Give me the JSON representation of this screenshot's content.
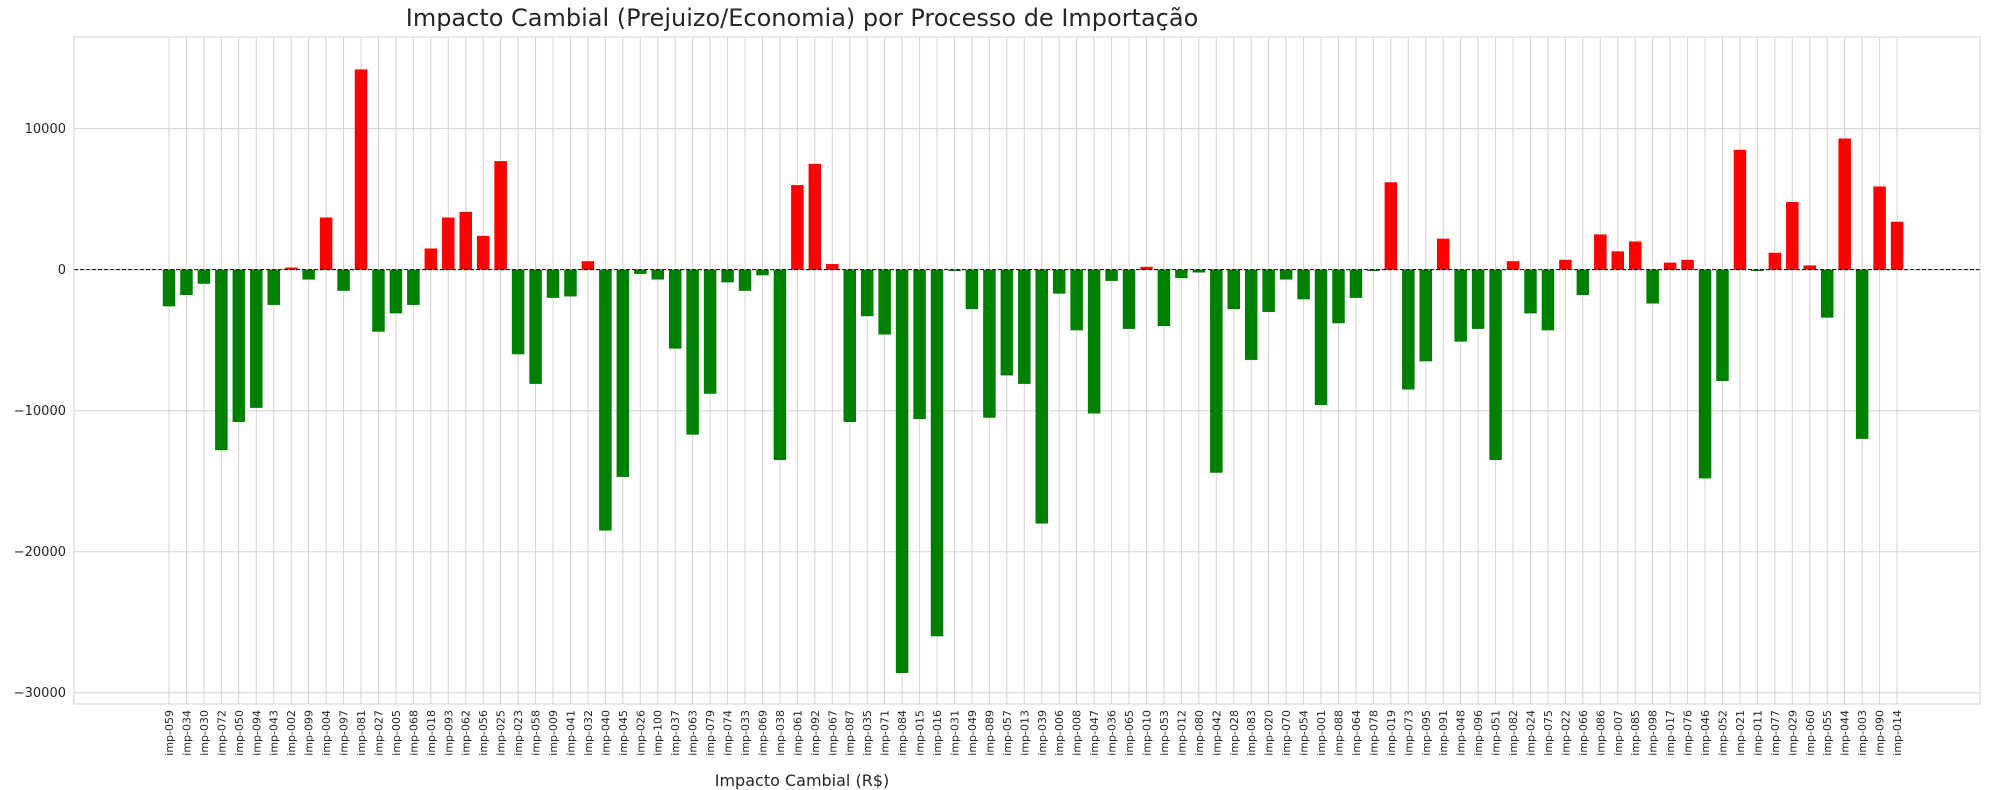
{
  "chart_data": {
    "type": "bar",
    "title": "Impacto Cambial (Prejuizo/Economia) por Processo de Importação",
    "xlabel": "Impacto Cambial (R$)",
    "ylabel": "",
    "ylim": [
      -30800,
      16500
    ],
    "yticks": [
      10000,
      0,
      -10000,
      -20000,
      -30000
    ],
    "ytick_labels": [
      "10000",
      "0",
      "−10000",
      "−20000",
      "−30000"
    ],
    "grid": true,
    "reference_line": 0,
    "colors": {
      "positive": "#ff0000",
      "negative": "#008000",
      "zero_line": "#000000",
      "grid": "#d3d3d3"
    },
    "categories": [
      "imp-059",
      "imp-034",
      "imp-030",
      "imp-072",
      "imp-050",
      "imp-094",
      "imp-043",
      "imp-002",
      "imp-099",
      "imp-004",
      "imp-097",
      "imp-081",
      "imp-027",
      "imp-005",
      "imp-068",
      "imp-018",
      "imp-093",
      "imp-062",
      "imp-056",
      "imp-025",
      "imp-023",
      "imp-058",
      "imp-009",
      "imp-041",
      "imp-032",
      "imp-040",
      "imp-045",
      "imp-026",
      "imp-100",
      "imp-037",
      "imp-063",
      "imp-079",
      "imp-074",
      "imp-033",
      "imp-069",
      "imp-038",
      "imp-061",
      "imp-092",
      "imp-067",
      "imp-087",
      "imp-035",
      "imp-071",
      "imp-084",
      "imp-015",
      "imp-016",
      "imp-031",
      "imp-049",
      "imp-089",
      "imp-057",
      "imp-013",
      "imp-039",
      "imp-006",
      "imp-008",
      "imp-047",
      "imp-036",
      "imp-065",
      "imp-010",
      "imp-053",
      "imp-012",
      "imp-080",
      "imp-042",
      "imp-028",
      "imp-083",
      "imp-020",
      "imp-070",
      "imp-054",
      "imp-001",
      "imp-088",
      "imp-064",
      "imp-078",
      "imp-019",
      "imp-073",
      "imp-095",
      "imp-091",
      "imp-048",
      "imp-096",
      "imp-051",
      "imp-082",
      "imp-024",
      "imp-075",
      "imp-022",
      "imp-066",
      "imp-086",
      "imp-007",
      "imp-085",
      "imp-098",
      "imp-017",
      "imp-076",
      "imp-046",
      "imp-052",
      "imp-021",
      "imp-011",
      "imp-077",
      "imp-029",
      "imp-060",
      "imp-055",
      "imp-044",
      "imp-003",
      "imp-090",
      "imp-014"
    ],
    "values": [
      -2600,
      -1800,
      -1000,
      -12800,
      -10800,
      -9800,
      -2500,
      150,
      -700,
      3700,
      -1500,
      14200,
      -4400,
      -3100,
      -2500,
      1500,
      3700,
      4100,
      2400,
      7700,
      -6000,
      -8100,
      -2000,
      -1900,
      600,
      -18500,
      -14700,
      -300,
      -700,
      -5600,
      -11700,
      -8800,
      -900,
      -1500,
      -400,
      -13500,
      6000,
      7500,
      400,
      -10800,
      -3300,
      -4600,
      -28600,
      -10600,
      -26000,
      -100,
      -2800,
      -10500,
      -7500,
      -8100,
      -18000,
      -1700,
      -4300,
      -10200,
      -800,
      -4200,
      200,
      -4000,
      -600,
      -200,
      -14400,
      -2800,
      -6400,
      -3000,
      -700,
      -2100,
      -9600,
      -3800,
      -2000,
      -100,
      6200,
      -8500,
      -6500,
      2200,
      -5100,
      -4200,
      -13500,
      600,
      -3100,
      -4300,
      700,
      -1800,
      2500,
      1300,
      2000,
      -2400,
      500,
      700,
      -14800,
      -7900,
      8500,
      -100,
      1200,
      4800,
      300,
      -3400,
      9300,
      -12000,
      5900,
      3400
    ]
  }
}
